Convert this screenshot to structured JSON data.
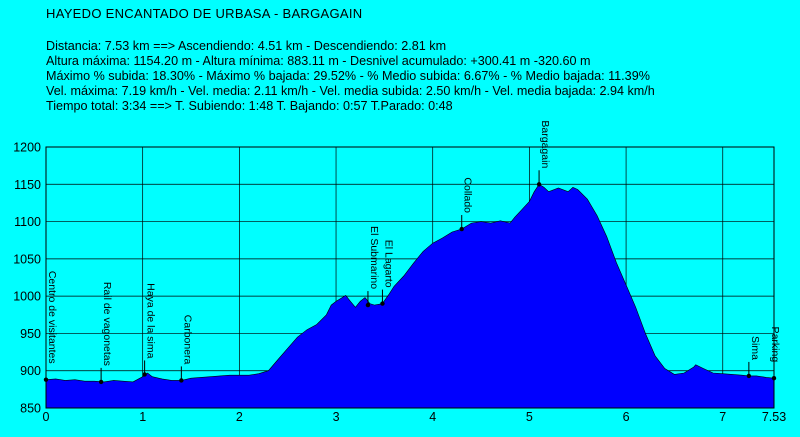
{
  "chart_data": {
    "type": "area",
    "title": "HAYEDO ENCANTADO DE URBASA - BARGAGAIN",
    "stats_lines": [
      "Distancia: 7.53 km    ==>    Ascendiendo: 4.51 km - Descendiendo: 2.81 km",
      "Altura máxima: 1154.20 m - Altura mínima: 883.11 m - Desnivel acumulado: +300.41 m  -320.60 m",
      "Máximo % subida: 18.30%  - Máximo % bajada: 29.52%  - % Medio subida: 6.67%  - % Medio bajada: 11.39%",
      "Vel. máxima: 7.19 km/h - Vel. media: 2.11 km/h - Vel. media subida: 2.50 km/h - Vel. media bajada: 2.94 km/h",
      "Tiempo total: 3:34    ==>   T. Subiendo: 1:48  T. Bajando: 0:57  T.Parado: 0:48"
    ],
    "xlim": [
      0,
      7.53
    ],
    "ylim": [
      850,
      1200
    ],
    "x_ticks": [
      "0",
      "1",
      "2",
      "3",
      "4",
      "5",
      "6",
      "7",
      "7.53"
    ],
    "y_ticks": [
      "850",
      "900",
      "950",
      "1000",
      "1050",
      "1100",
      "1150",
      "1200"
    ],
    "grid": true,
    "colors": {
      "background": "#00ffff",
      "fill": "#0000ff",
      "plot_background": "#00ffff"
    },
    "profile": [
      [
        0.0,
        888
      ],
      [
        0.1,
        889
      ],
      [
        0.2,
        887
      ],
      [
        0.3,
        888
      ],
      [
        0.4,
        886
      ],
      [
        0.5,
        886
      ],
      [
        0.6,
        885
      ],
      [
        0.7,
        887
      ],
      [
        0.8,
        886
      ],
      [
        0.9,
        885
      ],
      [
        1.0,
        892
      ],
      [
        1.05,
        897
      ],
      [
        1.1,
        892
      ],
      [
        1.2,
        889
      ],
      [
        1.3,
        887
      ],
      [
        1.4,
        887
      ],
      [
        1.5,
        890
      ],
      [
        1.6,
        891
      ],
      [
        1.7,
        892
      ],
      [
        1.8,
        893
      ],
      [
        1.9,
        894
      ],
      [
        2.0,
        894
      ],
      [
        2.1,
        894
      ],
      [
        2.2,
        896
      ],
      [
        2.3,
        900
      ],
      [
        2.4,
        915
      ],
      [
        2.5,
        930
      ],
      [
        2.6,
        945
      ],
      [
        2.7,
        955
      ],
      [
        2.8,
        962
      ],
      [
        2.9,
        975
      ],
      [
        2.95,
        988
      ],
      [
        3.0,
        993
      ],
      [
        3.05,
        997
      ],
      [
        3.1,
        1001
      ],
      [
        3.15,
        993
      ],
      [
        3.2,
        985
      ],
      [
        3.25,
        993
      ],
      [
        3.3,
        998
      ],
      [
        3.35,
        990
      ],
      [
        3.4,
        988
      ],
      [
        3.48,
        990
      ],
      [
        3.55,
        1003
      ],
      [
        3.6,
        1013
      ],
      [
        3.7,
        1027
      ],
      [
        3.8,
        1044
      ],
      [
        3.9,
        1060
      ],
      [
        4.0,
        1071
      ],
      [
        4.1,
        1078
      ],
      [
        4.2,
        1086
      ],
      [
        4.3,
        1090
      ],
      [
        4.4,
        1098
      ],
      [
        4.5,
        1100
      ],
      [
        4.6,
        1098
      ],
      [
        4.7,
        1101
      ],
      [
        4.8,
        1098
      ],
      [
        4.85,
        1106
      ],
      [
        4.9,
        1113
      ],
      [
        5.0,
        1127
      ],
      [
        5.05,
        1140
      ],
      [
        5.1,
        1150
      ],
      [
        5.15,
        1146
      ],
      [
        5.2,
        1140
      ],
      [
        5.3,
        1145
      ],
      [
        5.4,
        1140
      ],
      [
        5.45,
        1146
      ],
      [
        5.5,
        1143
      ],
      [
        5.6,
        1130
      ],
      [
        5.7,
        1108
      ],
      [
        5.8,
        1080
      ],
      [
        5.9,
        1045
      ],
      [
        6.0,
        1015
      ],
      [
        6.05,
        1000
      ],
      [
        6.1,
        985
      ],
      [
        6.2,
        950
      ],
      [
        6.3,
        920
      ],
      [
        6.4,
        903
      ],
      [
        6.5,
        895
      ],
      [
        6.6,
        897
      ],
      [
        6.7,
        905
      ],
      [
        6.72,
        908
      ],
      [
        6.8,
        903
      ],
      [
        6.9,
        897
      ],
      [
        7.0,
        896
      ],
      [
        7.1,
        895
      ],
      [
        7.2,
        894
      ],
      [
        7.27,
        893
      ],
      [
        7.35,
        893
      ],
      [
        7.45,
        891
      ],
      [
        7.53,
        890
      ]
    ],
    "waypoints": [
      {
        "name": "Centro de visitantes",
        "x": 0.0,
        "y": 888
      },
      {
        "name": "Rail de vagonetas",
        "x": 0.57,
        "y": 885
      },
      {
        "name": "Haya de la sima",
        "x": 1.02,
        "y": 895
      },
      {
        "name": "Carbonera",
        "x": 1.4,
        "y": 887
      },
      {
        "name": "El Submarino",
        "x": 3.33,
        "y": 988
      },
      {
        "name": "El Lagarto",
        "x": 3.48,
        "y": 990
      },
      {
        "name": "Collado",
        "x": 4.3,
        "y": 1090
      },
      {
        "name": "Bargagain",
        "x": 5.1,
        "y": 1150
      },
      {
        "name": "Sima",
        "x": 7.27,
        "y": 893
      },
      {
        "name": "Parking",
        "x": 7.53,
        "y": 890
      }
    ]
  }
}
